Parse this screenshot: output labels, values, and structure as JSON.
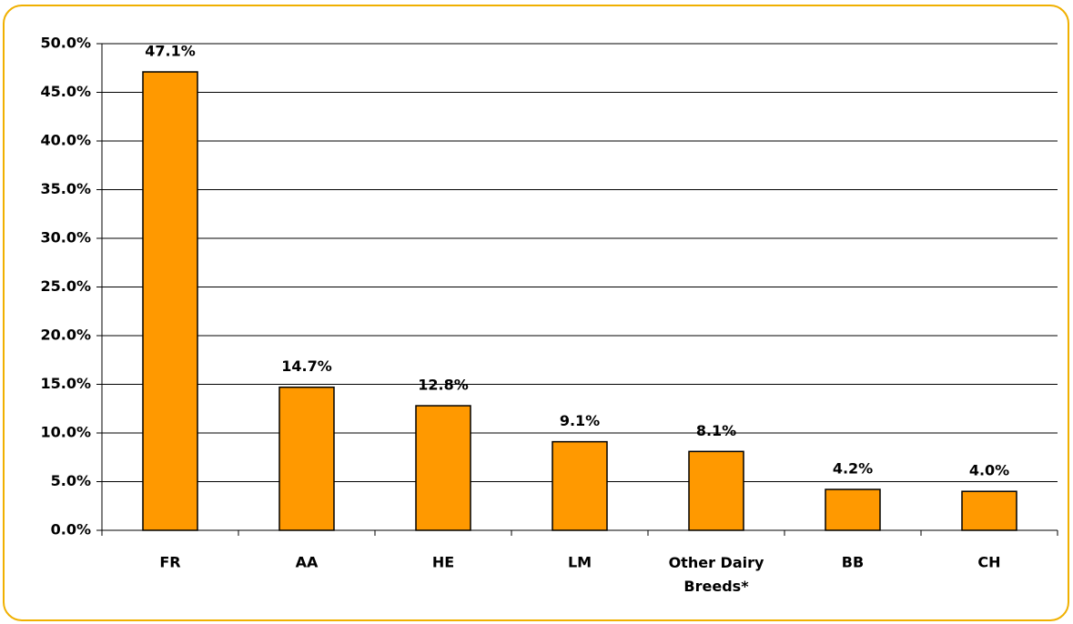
{
  "chart_data": {
    "type": "bar",
    "categories": [
      "FR",
      "AA",
      "HE",
      "LM",
      "Other Dairy Breeds*",
      "BB",
      "CH"
    ],
    "values": [
      47.1,
      14.7,
      12.8,
      9.1,
      8.1,
      4.2,
      4.0
    ],
    "value_labels": [
      "47.1%",
      "14.7%",
      "12.8%",
      "9.1%",
      "8.1%",
      "4.2%",
      "4.0%"
    ],
    "color": "#ff9900",
    "ylim": [
      0,
      50
    ],
    "yticks": [
      {
        "value": 0,
        "label": "0.0%"
      },
      {
        "value": 5,
        "label": "5.0%"
      },
      {
        "value": 10,
        "label": "10.0%"
      },
      {
        "value": 15,
        "label": "15.0%"
      },
      {
        "value": 20,
        "label": "20.0%"
      },
      {
        "value": 25,
        "label": "25.0%"
      },
      {
        "value": 30,
        "label": "30.0%"
      },
      {
        "value": 35,
        "label": "35.0%"
      },
      {
        "value": 40,
        "label": "40.0%"
      },
      {
        "value": 45,
        "label": "45.0%"
      },
      {
        "value": 50,
        "label": "50.0%"
      }
    ],
    "grid": true
  }
}
